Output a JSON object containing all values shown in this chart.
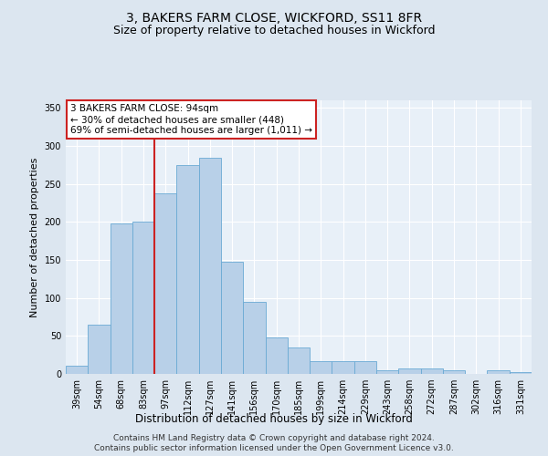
{
  "title": "3, BAKERS FARM CLOSE, WICKFORD, SS11 8FR",
  "subtitle": "Size of property relative to detached houses in Wickford",
  "xlabel": "Distribution of detached houses by size in Wickford",
  "ylabel": "Number of detached properties",
  "categories": [
    "39sqm",
    "54sqm",
    "68sqm",
    "83sqm",
    "97sqm",
    "112sqm",
    "127sqm",
    "141sqm",
    "156sqm",
    "170sqm",
    "185sqm",
    "199sqm",
    "214sqm",
    "229sqm",
    "243sqm",
    "258sqm",
    "272sqm",
    "287sqm",
    "302sqm",
    "316sqm",
    "331sqm"
  ],
  "values": [
    11,
    65,
    198,
    200,
    238,
    275,
    285,
    148,
    95,
    48,
    35,
    17,
    17,
    17,
    5,
    7,
    7,
    5,
    0,
    5,
    3
  ],
  "bar_color": "#b8d0e8",
  "bar_edge_color": "#6aaad4",
  "vline_color": "#cc2222",
  "annotation_text": "3 BAKERS FARM CLOSE: 94sqm\n← 30% of detached houses are smaller (448)\n69% of semi-detached houses are larger (1,011) →",
  "annotation_box_facecolor": "#ffffff",
  "annotation_box_edgecolor": "#cc2222",
  "ylim": [
    0,
    360
  ],
  "yticks": [
    0,
    50,
    100,
    150,
    200,
    250,
    300,
    350
  ],
  "bg_color": "#dce6f0",
  "plot_bg_color": "#e8f0f8",
  "grid_color": "#ffffff",
  "footer1": "Contains HM Land Registry data © Crown copyright and database right 2024.",
  "footer2": "Contains public sector information licensed under the Open Government Licence v3.0.",
  "title_fontsize": 10,
  "subtitle_fontsize": 9,
  "tick_fontsize": 7,
  "ylabel_fontsize": 8,
  "xlabel_fontsize": 8.5,
  "annotation_fontsize": 7.5,
  "footer_fontsize": 6.5
}
